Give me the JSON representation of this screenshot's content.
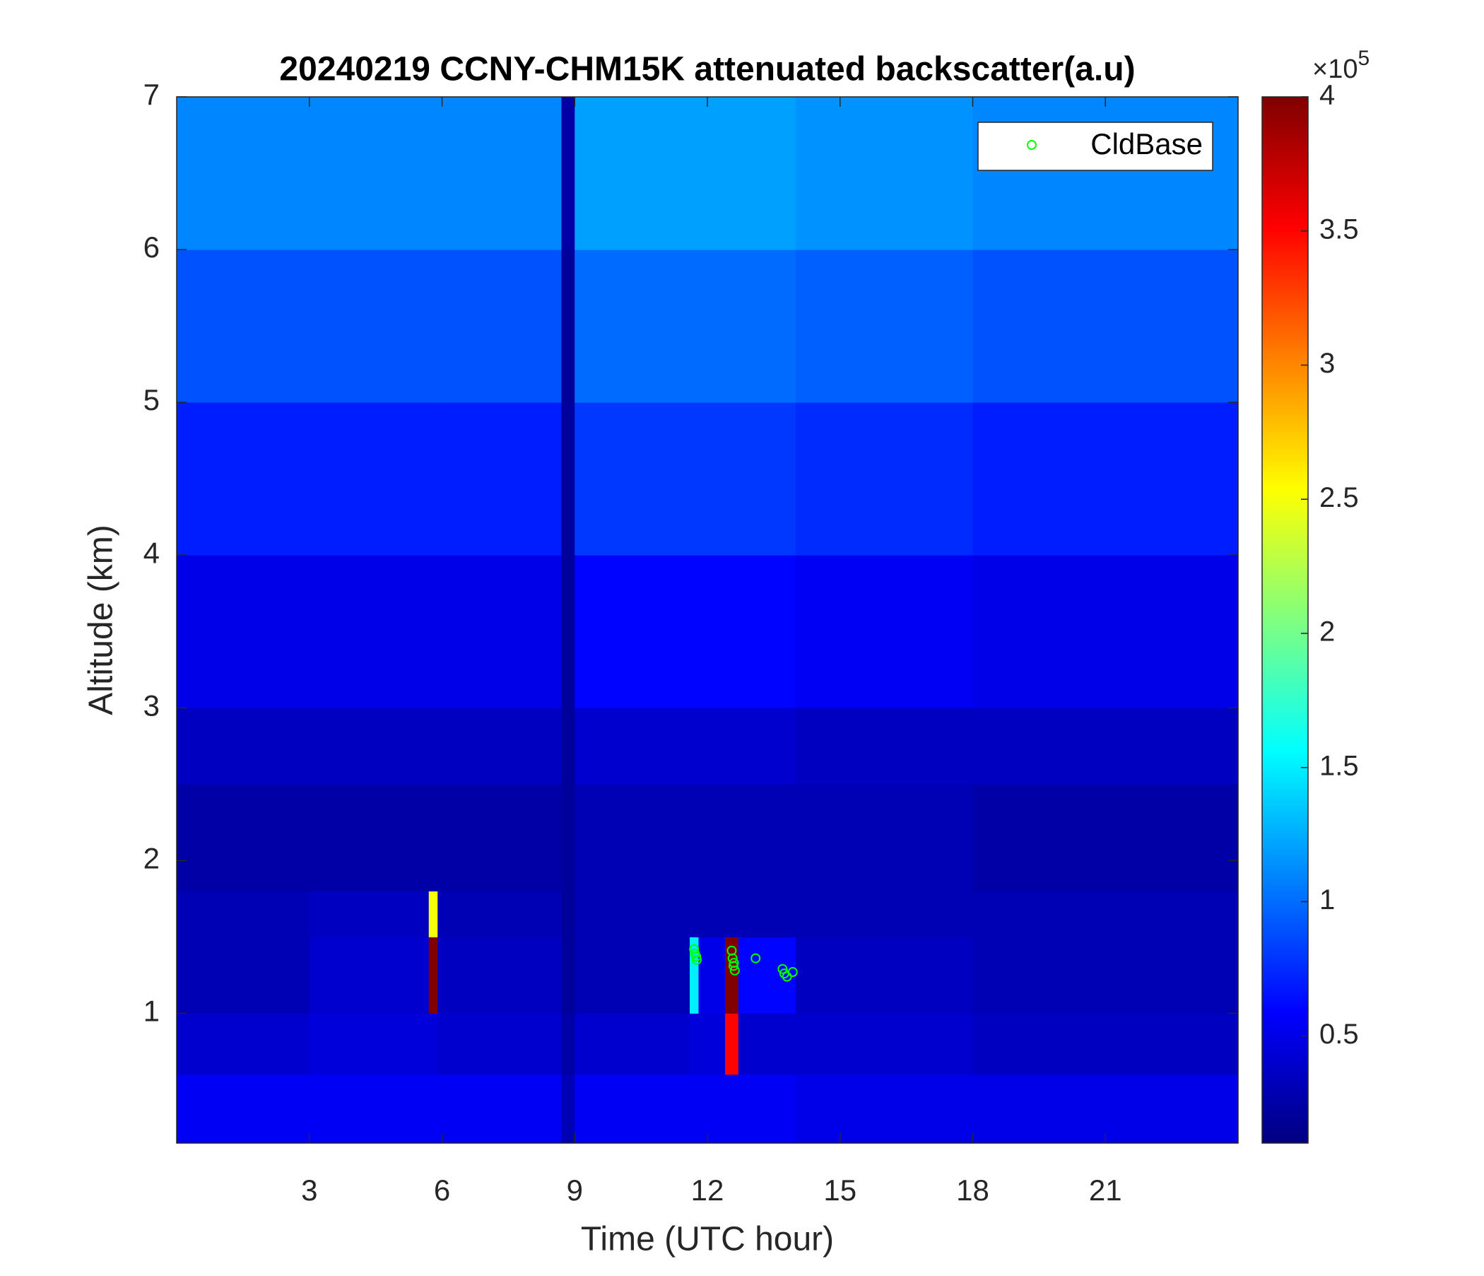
{
  "chart_data": {
    "type": "heatmap",
    "title": "20240219 CCNY-CHM15K attenuated backscatter(a.u)",
    "x_label": "Time (UTC hour)",
    "y_label": "Altitude (km)",
    "xlim": [
      0,
      24
    ],
    "ylim": [
      0.15,
      7
    ],
    "xticks": [
      3,
      6,
      9,
      12,
      15,
      18,
      21
    ],
    "yticks": [
      1,
      2,
      3,
      4,
      5,
      6,
      7
    ],
    "grid": false,
    "colormap": "jet",
    "colorbar": {
      "lim": [
        0.1,
        4
      ],
      "ticks": [
        0.5,
        1,
        1.5,
        2,
        2.5,
        3,
        3.5,
        4
      ],
      "scale_label": "×10",
      "scale_exponent": "5"
    },
    "x_edges": [
      0,
      3,
      5.7,
      5.9,
      8.7,
      9.0,
      11.6,
      11.8,
      12.4,
      12.7,
      14,
      18,
      24
    ],
    "y_edges": [
      0.15,
      0.6,
      1.0,
      1.5,
      1.8,
      2.5,
      3.0,
      4.0,
      5.0,
      6.0,
      7.0
    ],
    "z": [
      [
        0.55,
        0.55,
        0.55,
        0.55,
        0.3,
        0.55,
        0.55,
        0.55,
        0.55,
        0.55,
        0.5,
        0.5
      ],
      [
        0.4,
        0.45,
        0.45,
        0.4,
        0.25,
        0.4,
        0.45,
        0.45,
        3.5,
        0.4,
        0.4,
        0.35
      ],
      [
        0.3,
        0.4,
        4,
        0.35,
        0.2,
        0.3,
        1.5,
        0.5,
        4,
        0.6,
        0.35,
        0.3
      ],
      [
        0.3,
        0.35,
        2.5,
        0.3,
        0.2,
        0.3,
        0.3,
        0.3,
        0.3,
        0.3,
        0.3,
        0.3
      ],
      [
        0.25,
        0.25,
        0.25,
        0.25,
        0.2,
        0.3,
        0.3,
        0.3,
        0.3,
        0.3,
        0.3,
        0.25
      ],
      [
        0.35,
        0.35,
        0.35,
        0.35,
        0.2,
        0.4,
        0.4,
        0.4,
        0.4,
        0.4,
        0.35,
        0.35
      ],
      [
        0.5,
        0.5,
        0.5,
        0.5,
        0.2,
        0.6,
        0.6,
        0.6,
        0.6,
        0.6,
        0.55,
        0.5
      ],
      [
        0.7,
        0.7,
        0.7,
        0.7,
        0.2,
        0.8,
        0.8,
        0.8,
        0.8,
        0.8,
        0.75,
        0.7
      ],
      [
        0.9,
        0.9,
        0.9,
        0.9,
        0.2,
        1.0,
        1.0,
        1.0,
        1.0,
        1.0,
        0.95,
        0.9
      ],
      [
        1.1,
        1.1,
        1.1,
        1.1,
        0.25,
        1.2,
        1.2,
        1.2,
        1.2,
        1.2,
        1.15,
        1.1
      ]
    ],
    "series": [
      {
        "name": "CldBase",
        "color": "#00ff00",
        "type": "scatter",
        "x": [
          11.7,
          11.72,
          11.75,
          11.76,
          12.55,
          12.57,
          12.59,
          12.62,
          12.6,
          13.09,
          13.7,
          13.74,
          13.8,
          13.93
        ],
        "y": [
          1.42,
          1.39,
          1.37,
          1.35,
          1.41,
          1.36,
          1.31,
          1.28,
          1.33,
          1.36,
          1.29,
          1.26,
          1.24,
          1.27
        ]
      }
    ],
    "legend": "upper right"
  }
}
